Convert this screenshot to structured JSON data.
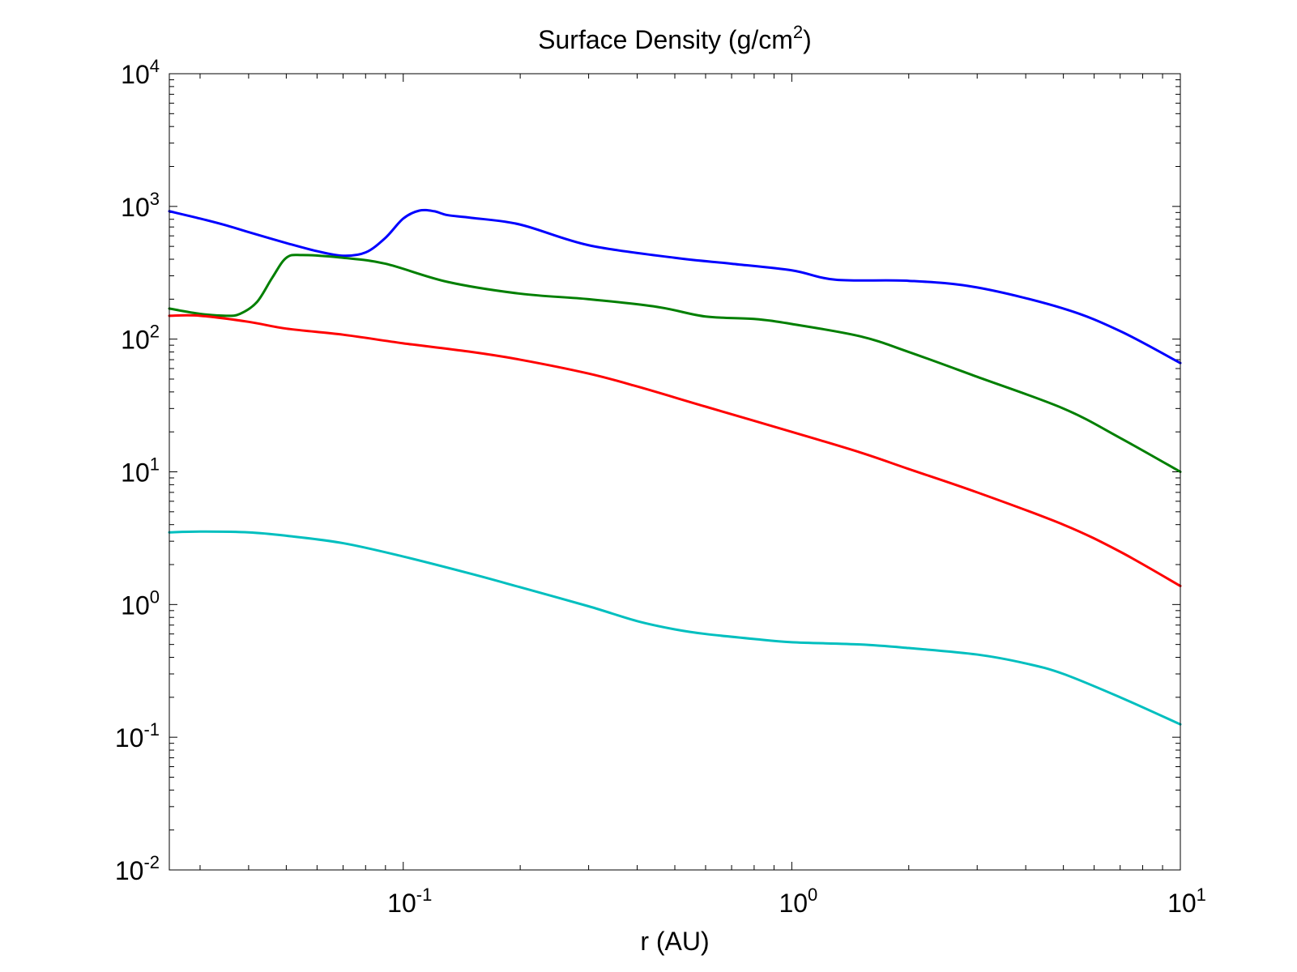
{
  "chart_data": {
    "type": "line",
    "title": "Surface Density (g/cm",
    "title_sup": "2",
    "title_end": ")",
    "xlabel": "r (AU)",
    "ylabel": "",
    "x_scale": "log",
    "y_scale": "log",
    "xlim": [
      0.025,
      10
    ],
    "ylim": [
      0.01,
      10000
    ],
    "grid": false,
    "legend": "none",
    "x_ticks": [
      {
        "value": 0.1,
        "base": "10",
        "exp": "-1"
      },
      {
        "value": 1,
        "base": "10",
        "exp": "0"
      },
      {
        "value": 10,
        "base": "10",
        "exp": "1"
      }
    ],
    "y_ticks": [
      {
        "value": 0.01,
        "base": "10",
        "exp": "-2"
      },
      {
        "value": 0.1,
        "base": "10",
        "exp": "-1"
      },
      {
        "value": 1,
        "base": "10",
        "exp": "0"
      },
      {
        "value": 10,
        "base": "10",
        "exp": "1"
      },
      {
        "value": 100,
        "base": "10",
        "exp": "2"
      },
      {
        "value": 1000,
        "base": "10",
        "exp": "3"
      },
      {
        "value": 10000,
        "base": "10",
        "exp": "4"
      }
    ],
    "series": [
      {
        "name": "blue",
        "color": "#0000ff",
        "x": [
          0.025,
          0.03,
          0.035,
          0.04,
          0.05,
          0.06,
          0.07,
          0.08,
          0.09,
          0.1,
          0.11,
          0.12,
          0.13,
          0.15,
          0.2,
          0.3,
          0.5,
          0.7,
          1.0,
          1.3,
          2.0,
          3.0,
          5.0,
          7.0,
          10.0
        ],
        "y": [
          920,
          810,
          720,
          640,
          530,
          460,
          425,
          450,
          580,
          810,
          930,
          920,
          860,
          820,
          730,
          510,
          410,
          370,
          330,
          280,
          275,
          245,
          170,
          115,
          66
        ]
      },
      {
        "name": "green",
        "color": "#007f00",
        "x": [
          0.025,
          0.03,
          0.035,
          0.038,
          0.042,
          0.046,
          0.05,
          0.055,
          0.07,
          0.09,
          0.13,
          0.2,
          0.3,
          0.45,
          0.6,
          0.8,
          1.0,
          1.5,
          2.0,
          3.0,
          5.0,
          7.0,
          10.0
        ],
        "y": [
          170,
          155,
          150,
          155,
          190,
          290,
          410,
          430,
          410,
          370,
          270,
          220,
          200,
          175,
          148,
          142,
          130,
          105,
          80,
          52,
          30,
          18,
          10
        ]
      },
      {
        "name": "red",
        "color": "#ff0000",
        "x": [
          0.025,
          0.03,
          0.04,
          0.05,
          0.07,
          0.1,
          0.15,
          0.2,
          0.3,
          0.4,
          0.6,
          1.0,
          1.5,
          2.0,
          3.0,
          5.0,
          7.0,
          10.0
        ],
        "y": [
          150,
          150,
          135,
          120,
          108,
          93,
          80,
          70,
          55,
          44,
          31,
          20,
          14,
          10.5,
          7,
          4,
          2.5,
          1.38
        ]
      },
      {
        "name": "cyan",
        "color": "#00bfbf",
        "x": [
          0.025,
          0.03,
          0.04,
          0.05,
          0.07,
          0.1,
          0.15,
          0.2,
          0.3,
          0.4,
          0.5,
          0.6,
          0.8,
          1.0,
          1.5,
          2.0,
          3.0,
          4.0,
          5.0,
          7.0,
          10.0
        ],
        "y": [
          3.5,
          3.55,
          3.5,
          3.3,
          2.9,
          2.3,
          1.7,
          1.35,
          0.97,
          0.75,
          0.65,
          0.6,
          0.55,
          0.52,
          0.5,
          0.47,
          0.42,
          0.36,
          0.3,
          0.2,
          0.125
        ]
      }
    ]
  }
}
